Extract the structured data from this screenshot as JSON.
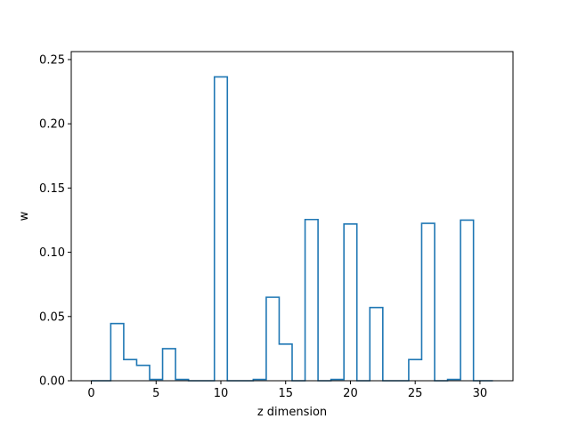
{
  "chart_data": {
    "type": "step",
    "xlabel": "z dimension",
    "ylabel": "w",
    "xlim": [
      -1.55,
      32.55
    ],
    "ylim": [
      0,
      0.2562
    ],
    "xticks": [
      0,
      5,
      10,
      15,
      20,
      25,
      30
    ],
    "yticks": [
      0.0,
      0.05,
      0.1,
      0.15,
      0.2,
      0.25
    ],
    "xtick_labels": [
      "0",
      "5",
      "10",
      "15",
      "20",
      "25",
      "30"
    ],
    "ytick_labels": [
      "0.00",
      "0.05",
      "0.10",
      "0.15",
      "0.20",
      "0.25"
    ],
    "grid": false,
    "line_color": "#1f77b4",
    "x": [
      0,
      1,
      2,
      3,
      4,
      5,
      6,
      7,
      8,
      9,
      10,
      11,
      12,
      13,
      14,
      15,
      16,
      17,
      18,
      19,
      20,
      21,
      22,
      23,
      24,
      25,
      26,
      27,
      28,
      29,
      30,
      31
    ],
    "values": [
      0,
      0,
      0.0445,
      0.0165,
      0.012,
      0.001,
      0.025,
      0.001,
      0,
      0,
      0.2365,
      0,
      0,
      0.001,
      0.065,
      0.0285,
      0,
      0.1255,
      0,
      0.001,
      0.122,
      0,
      0.057,
      0,
      0,
      0.0165,
      0.1225,
      0,
      0.001,
      0.125,
      0,
      0
    ]
  }
}
